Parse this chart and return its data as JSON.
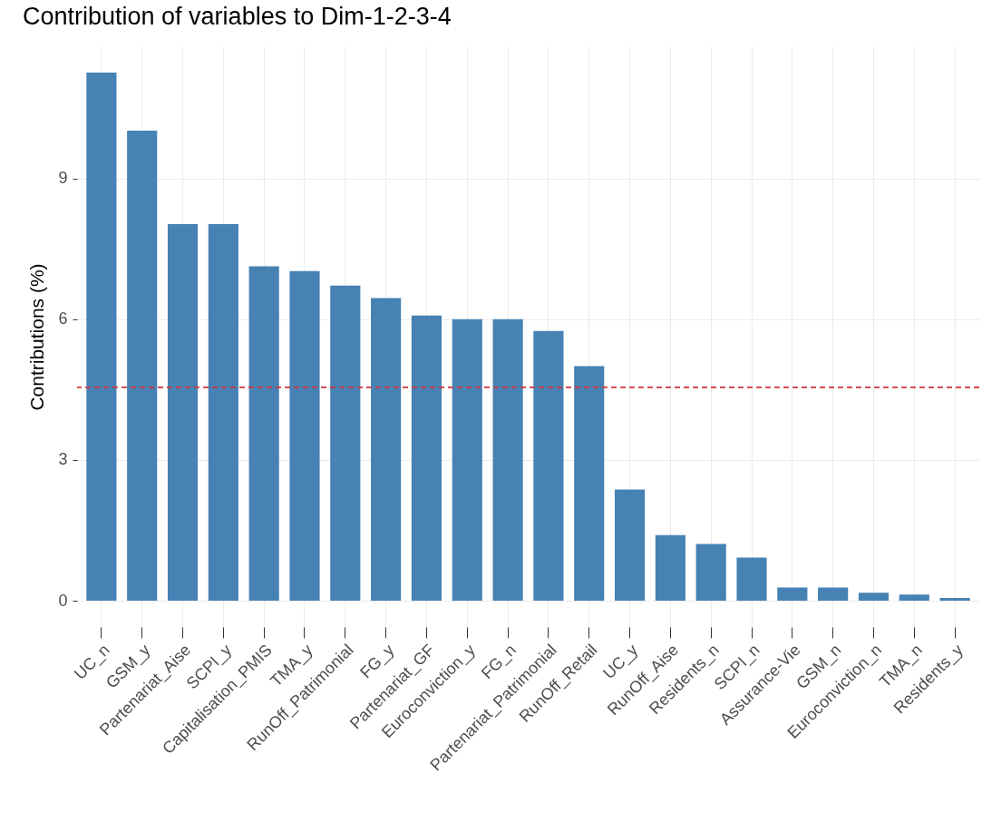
{
  "chart_data": {
    "type": "bar",
    "title": "Contribution of variables to Dim-1-2-3-4",
    "ylabel": "Contributions (%)",
    "categories": [
      "UC_n",
      "GSM_y",
      "Partenariat_Aise",
      "SCPI_y",
      "Capitalisation_PMIS",
      "TMA_y",
      "RunOff_Patrimonial",
      "FG_y",
      "Partenariat_GF",
      "Euroconviction_y",
      "FG_n",
      "Partenariat_Patrimonial",
      "RunOff_Retail",
      "UC_y",
      "RunOff_Aise",
      "Residents_n",
      "SCPI_n",
      "Assurance-Vie",
      "GSM_n",
      "Euroconviction_n",
      "TMA_n",
      "Residents_y"
    ],
    "values": [
      11.26,
      10.02,
      8.03,
      8.03,
      7.13,
      7.03,
      6.72,
      6.45,
      6.08,
      6.0,
      6.0,
      5.75,
      5.0,
      2.37,
      1.4,
      1.21,
      0.92,
      0.28,
      0.28,
      0.17,
      0.13,
      0.06
    ],
    "color": "#4682b4",
    "ylim": [
      -0.56,
      11.82
    ],
    "yticks": [
      0,
      3,
      6,
      9
    ],
    "grid": true,
    "ref_lines": [
      {
        "axis": "y",
        "value": 4.55,
        "color": "#d1343c",
        "line_style": "dashed"
      }
    ]
  }
}
